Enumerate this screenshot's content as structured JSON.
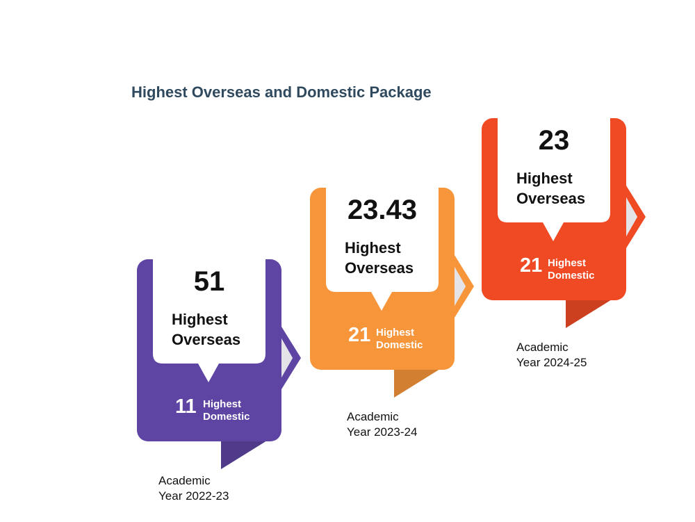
{
  "title": "Highest Overseas and Domestic Package",
  "cards": [
    {
      "overseas_value": "51",
      "overseas_label_1": "Highest",
      "overseas_label_2": "Overseas",
      "domestic_value": "11",
      "domestic_label_1": "Highest",
      "domestic_label_2": "Domestic",
      "year_label_1": "Academic",
      "year_label_2": "Year 2022-23",
      "color": "#5e45a3"
    },
    {
      "overseas_value": "23.43",
      "overseas_label_1": "Highest",
      "overseas_label_2": "Overseas",
      "domestic_value": "21",
      "domestic_label_1": "Highest",
      "domestic_label_2": "Domestic",
      "year_label_1": "Academic",
      "year_label_2": "Year 2023-24",
      "color": "#f7953a"
    },
    {
      "overseas_value": "23",
      "overseas_label_1": "Highest",
      "overseas_label_2": "Overseas",
      "domestic_value": "21",
      "domestic_label_1": "Highest",
      "domestic_label_2": "Domestic",
      "year_label_1": "Academic",
      "year_label_2": "Year 2024-25",
      "color": "#f04a24"
    }
  ]
}
